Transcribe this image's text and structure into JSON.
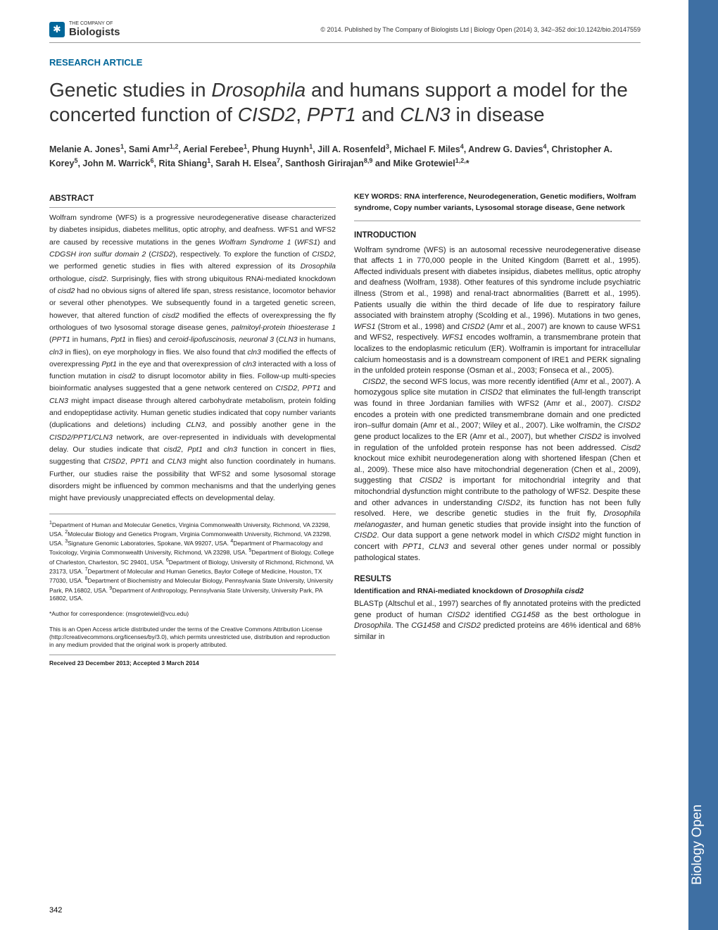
{
  "header": {
    "publisher_tag": "THE COMPANY OF",
    "publisher_name": "Biologists",
    "citation": "© 2014. Published by The Company of Biologists Ltd | Biology Open (2014) 3, 342–352 doi:10.1242/bio.20147559"
  },
  "article_type": "RESEARCH ARTICLE",
  "title_parts": {
    "p1": "Genetic studies in ",
    "i1": "Drosophila",
    "p2": " and humans support a model for the concerted function of ",
    "i2": "CISD2",
    "p3": ", ",
    "i3": "PPT1",
    "p4": " and ",
    "i4": "CLN3",
    "p5": " in disease"
  },
  "authors_html": "Melanie A. Jones<sup>1</sup>, Sami Amr<sup>1,2</sup>, Aerial Ferebee<sup>1</sup>, Phung Huynh<sup>1</sup>, Jill A. Rosenfeld<sup>3</sup>, Michael F. Miles<sup>4</sup>, Andrew G. Davies<sup>4</sup>, Christopher A. Korey<sup>5</sup>, John M. Warrick<sup>6</sup>, Rita Shiang<sup>1</sup>, Sarah H. Elsea<sup>7</sup>, Santhosh Girirajan<sup>8,9</sup> and Mike Grotewiel<sup>1,2,</sup>*",
  "abstract_head": "ABSTRACT",
  "abstract": "Wolfram syndrome (WFS) is a progressive neurodegenerative disease characterized by diabetes insipidus, diabetes mellitus, optic atrophy, and deafness. WFS1 and WFS2 are caused by recessive mutations in the genes <i>Wolfram Syndrome 1</i> (<i>WFS1</i>) and <i>CDGSH iron sulfur domain 2</i> (<i>CISD2</i>), respectively. To explore the function of <i>CISD2</i>, we performed genetic studies in flies with altered expression of its <i>Drosophila</i> orthologue, <i>cisd2</i>. Surprisingly, flies with strong ubiquitous RNAi-mediated knockdown of <i>cisd2</i> had no obvious signs of altered life span, stress resistance, locomotor behavior or several other phenotypes. We subsequently found in a targeted genetic screen, however, that altered function of <i>cisd2</i> modified the effects of overexpressing the fly orthologues of two lysosomal storage disease genes, <i>palmitoyl-protein thioesterase 1</i> (<i>PPT1</i> in humans, <i>Ppt1</i> in flies) and <i>ceroid-lipofuscinosis, neuronal 3</i> (<i>CLN3</i> in humans, <i>cln3</i> in flies), on eye morphology in flies. We also found that <i>cln3</i> modified the effects of overexpressing <i>Ppt1</i> in the eye and that overexpression of <i>cln3</i> interacted with a loss of function mutation in <i>cisd2</i> to disrupt locomotor ability in flies. Follow-up multi-species bioinformatic analyses suggested that a gene network centered on <i>CISD2</i>, <i>PPT1</i> and <i>CLN3</i> might impact disease through altered carbohydrate metabolism, protein folding and endopeptidase activity. Human genetic studies indicated that copy number variants (duplications and deletions) including <i>CLN3</i>, and possibly another gene in the <i>CISD2/PPT1/CLN3</i> network, are over-represented in individuals with developmental delay. Our studies indicate that <i>cisd2</i>, <i>Ppt1</i> and <i>cln3</i> function in concert in flies, suggesting that <i>CISD2</i>, <i>PPT1</i> and <i>CLN3</i> might also function coordinately in humans. Further, our studies raise the possibility that WFS2 and some lysosomal storage disorders might be influenced by common mechanisms and that the underlying genes might have previously unappreciated effects on developmental delay.",
  "affiliations": "<sup>1</sup>Department of Human and Molecular Genetics, Virginia Commonwealth University, Richmond, VA 23298, USA. <sup>2</sup>Molecular Biology and Genetics Program, Virginia Commonwealth University, Richmond, VA 23298, USA. <sup>3</sup>Signature Genomic Laboratories, Spokane, WA 99207, USA. <sup>4</sup>Department of Pharmacology and Toxicology, Virginia Commonwealth University, Richmond, VA 23298, USA. <sup>5</sup>Department of Biology, College of Charleston, Charleston, SC 29401, USA. <sup>6</sup>Department of Biology, University of Richmond, Richmond, VA 23173, USA. <sup>7</sup>Department of Molecular and Human Genetics, Baylor College of Medicine, Houston, TX 77030, USA. <sup>8</sup>Department of Biochemistry and Molecular Biology, Pennsylvania State University, University Park, PA 16802, USA. <sup>9</sup>Department of Anthropology, Pennsylvania State University, University Park, PA 16802, USA.",
  "correspondence": "*Author for correspondence: (msgrotewiel@vcu.edu)",
  "license": "This is an Open Access article distributed under the terms of the Creative Commons Attribution License (http://creativecommons.org/licenses/by/3.0), which permits unrestricted use, distribution and reproduction in any medium provided that the original work is properly attributed.",
  "received": "Received 23 December 2013; Accepted 3 March 2014",
  "keywords": "KEY WORDS: RNA interference, Neurodegeneration, Genetic modifiers, Wolfram syndrome, Copy number variants, Lysosomal storage disease, Gene network",
  "intro_head": "INTRODUCTION",
  "intro_p1": "Wolfram syndrome (WFS) is an autosomal recessive neurodegenerative disease that affects 1 in 770,000 people in the United Kingdom (Barrett et al., 1995). Affected individuals present with diabetes insipidus, diabetes mellitus, optic atrophy and deafness (Wolfram, 1938). Other features of this syndrome include psychiatric illness (Strom et al., 1998) and renal-tract abnormalities (Barrett et al., 1995). Patients usually die within the third decade of life due to respiratory failure associated with brainstem atrophy (Scolding et al., 1996). Mutations in two genes, <i>WFS1</i> (Strom et al., 1998) and <i>CISD2</i> (Amr et al., 2007) are known to cause WFS1 and WFS2, respectively. <i>WFS1</i> encodes wolframin, a transmembrane protein that localizes to the endoplasmic reticulum (ER). Wolframin is important for intracellular calcium homeostasis and is a downstream component of IRE1 and PERK signaling in the unfolded protein response (Osman et al., 2003; Fonseca et al., 2005).",
  "intro_p2": "<i>CISD2</i>, the second WFS locus, was more recently identified (Amr et al., 2007). A homozygous splice site mutation in <i>CISD2</i> that eliminates the full-length transcript was found in three Jordanian families with WFS2 (Amr et al., 2007). <i>CISD2</i> encodes a protein with one predicted transmembrane domain and one predicted iron–sulfur domain (Amr et al., 2007; Wiley et al., 2007). Like wolframin, the <i>CISD2</i> gene product localizes to the ER (Amr et al., 2007), but whether <i>CISD2</i> is involved in regulation of the unfolded protein response has not been addressed. <i>Cisd2</i> knockout mice exhibit neurodegeneration along with shortened lifespan (Chen et al., 2009). These mice also have mitochondrial degeneration (Chen et al., 2009), suggesting that <i>CISD2</i> is important for mitochondrial integrity and that mitochondrial dysfunction might contribute to the pathology of WFS2. Despite these and other advances in understanding <i>CISD2</i>, its function has not been fully resolved. Here, we describe genetic studies in the fruit fly, <i>Drosophila melanogaster</i>, and human genetic studies that provide insight into the function of <i>CISD2</i>. Our data support a gene network model in which <i>CISD2</i> might function in concert with <i>PPT1</i>, <i>CLN3</i> and several other genes under normal or possibly pathological states.",
  "results_head": "RESULTS",
  "results_sub": "Identification and RNAi-mediated knockdown of <i>Drosophila cisd2</i>",
  "results_body": "BLASTp (Altschul et al., 1997) searches of fly annotated proteins with the predicted gene product of human <i>CISD2</i> identified <i>CG1458</i> as the best orthologue in <i>Drosophila</i>. The <i>CG1458</i> and <i>CISD2</i> predicted proteins are 46% identical and 68% similar in",
  "side_tab": "Biology Open",
  "page_number": "342",
  "colors": {
    "brand_blue": "#006699",
    "side_blue": "#3e6fa3",
    "text": "#222222",
    "rule": "#999999"
  }
}
